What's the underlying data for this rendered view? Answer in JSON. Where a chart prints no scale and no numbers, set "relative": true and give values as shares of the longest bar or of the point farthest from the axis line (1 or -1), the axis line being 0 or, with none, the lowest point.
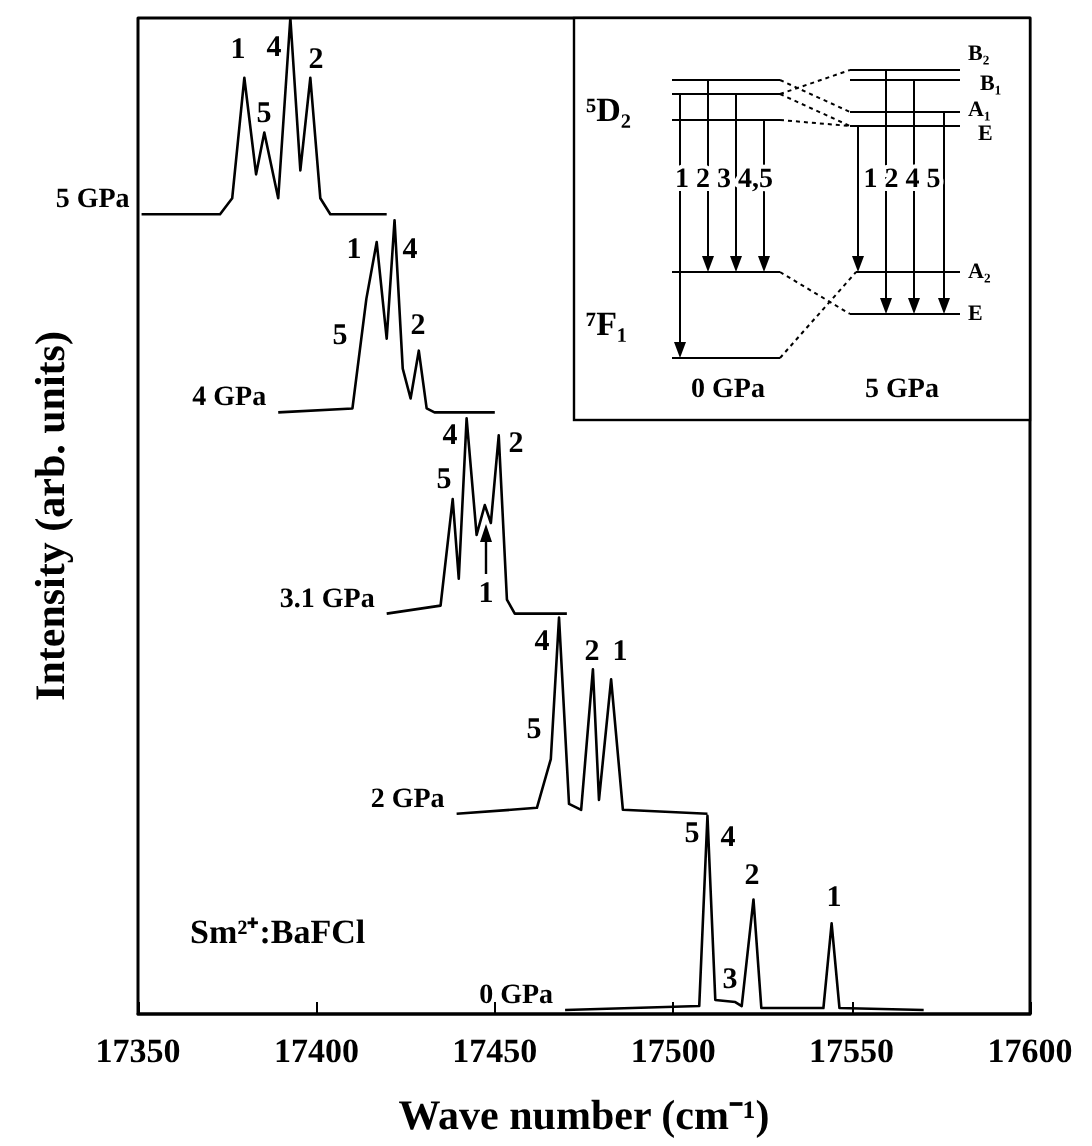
{
  "chart_data": {
    "type": "line",
    "relative": true,
    "xlabel": "Wave number (cm⁻¹)",
    "ylabel": "Intensity (arb. units)",
    "xlim": [
      17350,
      17600
    ],
    "xticks": [
      17350,
      17400,
      17450,
      17500,
      17550,
      17600
    ],
    "series": [
      {
        "name": "5 GPa",
        "color": "#000000",
        "x": [
          17351,
          17373,
          17376.4,
          17379.8,
          17383.1,
          17385.4,
          17389.3,
          17392.7,
          17395.5,
          17398.3,
          17401.1,
          17403.9,
          17419.7
        ],
        "values": [
          0.803,
          0.803,
          0.819,
          0.94,
          0.843,
          0.885,
          0.819,
          1.0,
          0.847,
          0.94,
          0.819,
          0.803,
          0.803
        ]
      },
      {
        "name": "4 GPa",
        "color": "#000000",
        "x": [
          17389.3,
          17410.1,
          17414.0,
          17416.9,
          17419.7,
          17421.9,
          17424.2,
          17426.4,
          17428.7,
          17430.9,
          17433.1,
          17450.0
        ],
        "values": [
          0.604,
          0.608,
          0.718,
          0.775,
          0.678,
          0.797,
          0.648,
          0.618,
          0.666,
          0.608,
          0.604,
          0.604
        ]
      },
      {
        "name": "3.1 GPa",
        "color": "#000000",
        "x": [
          17419.7,
          17434.8,
          17438.2,
          17439.9,
          17442.1,
          17444.9,
          17447.2,
          17448.9,
          17451.1,
          17453.4,
          17455.6,
          17470.2
        ],
        "values": [
          0.402,
          0.41,
          0.517,
          0.437,
          0.598,
          0.481,
          0.511,
          0.493,
          0.581,
          0.416,
          0.402,
          0.402
        ]
      },
      {
        "name": "2 GPa",
        "color": "#000000",
        "x": [
          17439.3,
          17461.8,
          17465.7,
          17468.0,
          17470.8,
          17474.2,
          17477.5,
          17479.2,
          17482.6,
          17485.9,
          17509.6
        ],
        "values": [
          0.201,
          0.207,
          0.256,
          0.398,
          0.211,
          0.205,
          0.346,
          0.215,
          0.336,
          0.205,
          0.201
        ]
      },
      {
        "name": "0 GPa",
        "color": "#000000",
        "x": [
          17469.7,
          17507.3,
          17509.6,
          17511.8,
          17517.4,
          17519.2,
          17522.5,
          17524.7,
          17542.1,
          17544.4,
          17546.6,
          17570.2
        ],
        "values": [
          0.004,
          0.008,
          0.199,
          0.014,
          0.012,
          0.008,
          0.115,
          0.006,
          0.006,
          0.091,
          0.006,
          0.004
        ]
      }
    ],
    "annotations": [
      "1",
      "5",
      "4",
      "2",
      "1",
      "4",
      "5",
      "2",
      "4",
      "5",
      "2",
      "1",
      "4",
      "5",
      "2",
      "1",
      "5",
      "4",
      "2",
      "1",
      "3",
      "Sm²⁺:BaFCl",
      "⁵D₂",
      "⁷F₁",
      "1 2 3 4,5",
      "1 2 4 5",
      "0 GPa",
      "5 GPa",
      "B₂",
      "B₁",
      "A₁",
      "E",
      "A₂",
      "E"
    ]
  }
}
